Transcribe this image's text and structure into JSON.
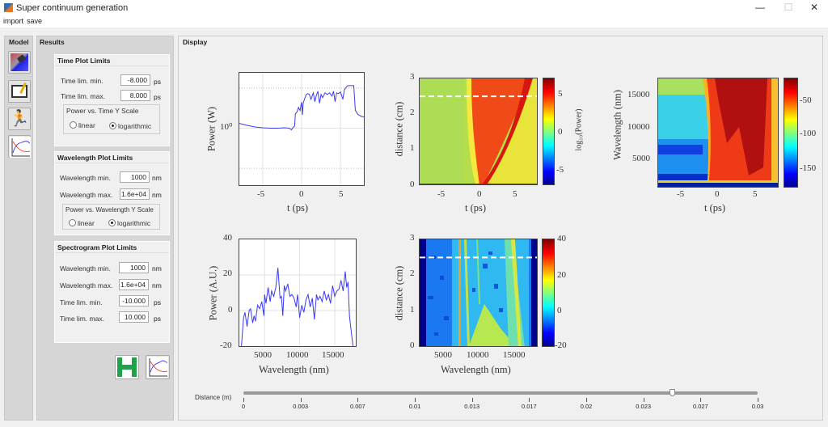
{
  "window": {
    "title": "Super continuum generation",
    "minimize": "—",
    "maximize": "☐",
    "close": "✕"
  },
  "menu": [
    "import",
    "save"
  ],
  "model_panel": {
    "label": "Model",
    "buttons": [
      "laser-model-icon",
      "edit-parameters-icon",
      "run-simulation-icon",
      "plot-results-icon"
    ]
  },
  "results_panel": {
    "label": "Results",
    "time_limits": {
      "title": "Time Plot Limits",
      "min_label": "Time lim. min.",
      "min_value": "-8.000",
      "max_label": "Time lim. max.",
      "max_value": "8.000",
      "unit": "ps",
      "scale": {
        "title": "Power vs. Time Y Scale",
        "options": [
          "linear",
          "logarithmic"
        ],
        "selected": "logarithmic"
      }
    },
    "wavelength_limits": {
      "title": "Wavelength Plot Limits",
      "min_label": "Wavelength min.",
      "min_value": "1000",
      "max_label": "Wavelength max.",
      "max_value": "1.6e+04",
      "unit": "nm",
      "scale": {
        "title": "Power vs. Wavelength Y Scale",
        "options": [
          "linear",
          "logarithmic"
        ],
        "selected": "logarithmic"
      }
    },
    "spectrogram_limits": {
      "title": "Spectrogram Plot Limits",
      "wl_min_label": "Wavelength min.",
      "wl_min_value": "1000",
      "wl_max_label": "Wavelength max.",
      "wl_max_value": "1.6e+04",
      "wl_unit": "nm",
      "t_min_label": "Time lim. min.",
      "t_min_value": "-10.000",
      "t_max_label": "Time lim. max.",
      "t_max_value": "10.000",
      "t_unit": "ps"
    }
  },
  "display": {
    "label": "Display",
    "slider": {
      "label": "Distance (m)",
      "min": 0,
      "max": 0.03,
      "value": 0.025,
      "ticks": [
        "0",
        "0.003",
        "0.007",
        "0.01",
        "0.013",
        "0.017",
        "0.02",
        "0.023",
        "0.027",
        "0.03"
      ]
    }
  },
  "chart_data": [
    {
      "type": "line",
      "title": "",
      "xlabel": "t  (ps)",
      "ylabel": "Power (W)",
      "xlim": [
        -8,
        8
      ],
      "ylog10lim": [
        -1.42,
        1.38
      ],
      "yscale": "log",
      "xticks": [
        "-5",
        "0",
        "5"
      ],
      "yticks": [
        "10⁰"
      ],
      "x": [
        -8,
        -7,
        -6,
        -5,
        -4,
        -3,
        -2.2,
        -1.6,
        -1.3,
        -1.1,
        -0.9,
        -0.8,
        -0.6,
        -0.4,
        -0.2,
        0,
        0.1,
        0.2,
        0.4,
        0.6,
        0.8,
        1,
        1.2,
        1.5,
        1.7,
        1.9,
        2.1,
        2.3,
        2.5,
        2.7,
        3,
        3.3,
        3.6,
        3.9,
        4.1,
        4.3,
        4.5,
        4.7,
        5,
        5.3,
        5.5,
        5.8,
        6,
        6.4,
        6.7,
        6.9,
        7.2,
        7.6,
        8
      ],
      "y": [
        0.12,
        0.07,
        0.03,
        0.01,
        0.0,
        0.0,
        0.01,
        0.0,
        -0.04,
        0.02,
        0.05,
        0.36,
        0.4,
        0.52,
        0.44,
        0.65,
        0.33,
        0.62,
        0.74,
        0.84,
        0.86,
        0.84,
        0.72,
        0.88,
        0.66,
        0.82,
        0.92,
        0.62,
        0.84,
        0.76,
        0.88,
        0.84,
        0.88,
        0.8,
        0.92,
        0.66,
        0.88,
        0.86,
        0.9,
        0.72,
        0.96,
        1.04,
        1.06,
        1.06,
        1.06,
        0.45,
        0.35,
        0.3,
        0.28
      ]
    },
    {
      "type": "heatmap",
      "xlabel": "t  (ps)",
      "ylabel": "distance (cm)",
      "colorbar_label": "log₁₀(Power)",
      "xlim": [
        -8,
        8
      ],
      "ylim": [
        0,
        3
      ],
      "xticks": [
        "-5",
        "0",
        "5"
      ],
      "yticks": [
        "0",
        "1",
        "2",
        "3"
      ],
      "cticks": [
        "5",
        "0",
        "-5"
      ],
      "marker_distance_cm": 2.5
    },
    {
      "type": "heatmap",
      "xlabel": "t  (ps)",
      "ylabel": "Wavelength (nm)",
      "xlim": [
        -8,
        8
      ],
      "ylim": [
        1000,
        17500
      ],
      "xticks": [
        "-5",
        "0",
        "5"
      ],
      "yticks": [
        "5000",
        "10000",
        "15000"
      ],
      "cticks": [
        "-50",
        "-100",
        "-150"
      ]
    },
    {
      "type": "line",
      "xlabel": "Wavelength (nm)",
      "ylabel": "Power (A.U.)",
      "xlim": [
        1400,
        18000
      ],
      "ylim": [
        -20,
        40
      ],
      "xticks": [
        "5000",
        "10000",
        "15000"
      ],
      "yticks": [
        "40",
        "20",
        "0",
        "-20"
      ],
      "x": [
        1700,
        2000,
        2200,
        2500,
        2800,
        3000,
        3300,
        3500,
        3700,
        4000,
        4300,
        4600,
        4900,
        5000,
        5200,
        5500,
        5800,
        6000,
        6300,
        6600,
        6900,
        7200,
        7400,
        7600,
        7800,
        8000,
        8300,
        8600,
        8900,
        9200,
        9500,
        9700,
        10000,
        10300,
        10600,
        10900,
        11200,
        11500,
        11800,
        12100,
        12400,
        12600,
        12900,
        13200,
        13500,
        13800,
        14100,
        14400,
        14700,
        15000,
        15300,
        15600,
        15900,
        16200,
        16500,
        16700,
        16900,
        17100,
        17300,
        17600
      ],
      "y": [
        -20,
        -4,
        -1,
        -9,
        0,
        1,
        -7,
        -3,
        -6,
        3,
        1,
        5,
        -3,
        9,
        4,
        13,
        5,
        11,
        8,
        13,
        24,
        7,
        8,
        -3,
        14,
        11,
        15,
        8,
        9,
        7,
        2,
        9,
        -4,
        3,
        -1,
        6,
        9,
        2,
        7,
        -5,
        9,
        6,
        8,
        5,
        11,
        6,
        9,
        4,
        14,
        8,
        11,
        12,
        17,
        11,
        22,
        13,
        16,
        -3,
        -10,
        -20
      ]
    },
    {
      "type": "heatmap",
      "xlabel": "Wavelength (nm)",
      "ylabel": "distance (cm)",
      "xlim": [
        1400,
        18000
      ],
      "ylim": [
        0,
        3
      ],
      "xticks": [
        "5000",
        "10000",
        "15000"
      ],
      "yticks": [
        "0",
        "1",
        "2",
        "3"
      ],
      "cticks": [
        "40",
        "20",
        "0",
        "-20"
      ],
      "marker_distance_cm": 2.5
    }
  ]
}
